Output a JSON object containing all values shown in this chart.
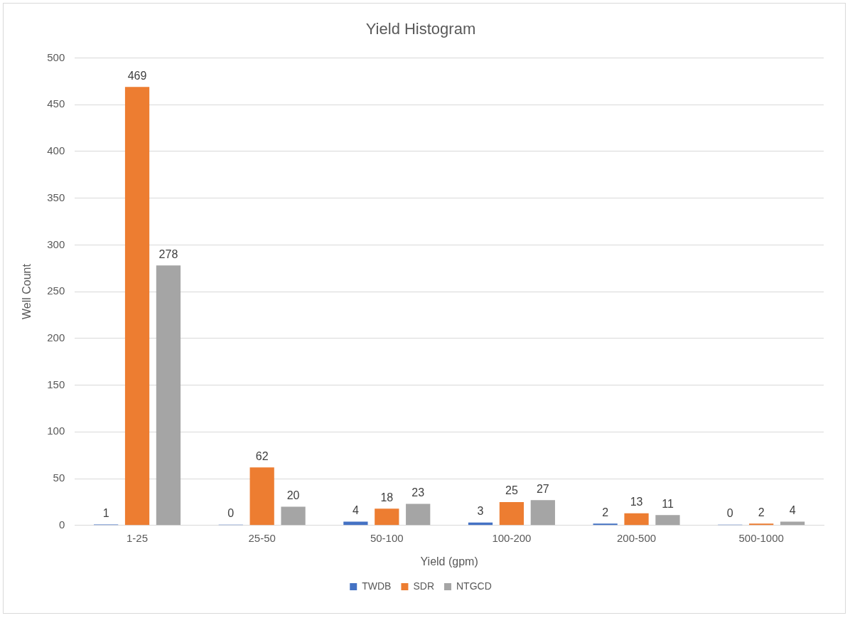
{
  "chart_data": {
    "type": "bar",
    "title": "Yield Histogram",
    "xlabel": "Yield (gpm)",
    "ylabel": "Well Count",
    "categories": [
      "1-25",
      "25-50",
      "50-100",
      "100-200",
      "200-500",
      "500-1000"
    ],
    "series": [
      {
        "name": "TWDB",
        "color": "#4472c4",
        "values": [
          1,
          0,
          4,
          3,
          2,
          0
        ]
      },
      {
        "name": "SDR",
        "color": "#ed7d31",
        "values": [
          469,
          62,
          18,
          25,
          13,
          2
        ]
      },
      {
        "name": "NTGCD",
        "color": "#a5a5a5",
        "values": [
          278,
          20,
          23,
          27,
          11,
          4
        ]
      }
    ],
    "ylim": [
      0,
      500
    ],
    "yticks": [
      0,
      50,
      100,
      150,
      200,
      250,
      300,
      350,
      400,
      450,
      500
    ],
    "grid": "y",
    "legend": "bottom",
    "data_labels": true
  }
}
